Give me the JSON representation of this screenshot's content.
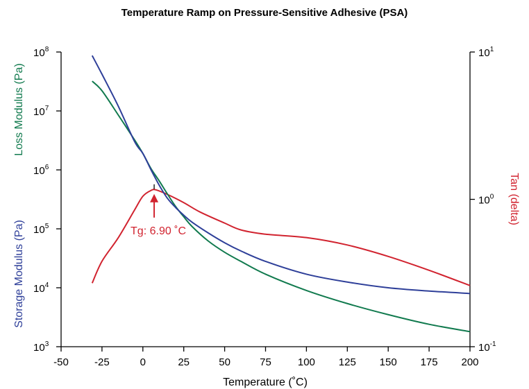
{
  "chart_data": {
    "type": "line",
    "title": "Temperature Ramp on Pressure-Sensitive Adhesive (PSA)",
    "xlabel": "Temperature (˚C)",
    "ylabel_left_top": "Loss Modulus  (Pa)",
    "ylabel_left_bottom": "Storage Modulus (Pa)",
    "ylabel_right": "Tan  (delta)",
    "xlim": [
      -50,
      200
    ],
    "x_ticks": [
      "-50",
      "-25",
      "0",
      "25",
      "50",
      "75",
      "100",
      "125",
      "150",
      "175",
      "200"
    ],
    "y_left_scale": "log",
    "y_left_range": [
      1000,
      100000000
    ],
    "y_left_ticks": [
      {
        "base": "10",
        "exp": "3"
      },
      {
        "base": "10",
        "exp": "4"
      },
      {
        "base": "10",
        "exp": "5"
      },
      {
        "base": "10",
        "exp": "6"
      },
      {
        "base": "10",
        "exp": "7"
      },
      {
        "base": "10",
        "exp": "8"
      }
    ],
    "y_right_scale": "log",
    "y_right_range": [
      0.1,
      10
    ],
    "y_right_ticks": [
      {
        "base": "10",
        "exp": "-1"
      },
      {
        "base": "10",
        "exp": "0"
      },
      {
        "base": "10",
        "exp": "1"
      }
    ],
    "colors": {
      "storage": "#2e3f99",
      "loss": "#117a4e",
      "tan": "#d1232f"
    },
    "series": [
      {
        "axis": "left",
        "color_key": "storage",
        "points": [
          [
            -31,
            87000000
          ],
          [
            -25,
            42000000
          ],
          [
            -15,
            12000000
          ],
          [
            -5,
            3000000
          ],
          [
            0,
            1900000
          ],
          [
            5,
            1000000
          ],
          [
            10,
            550000
          ],
          [
            15,
            330000
          ],
          [
            20,
            230000
          ],
          [
            25,
            170000
          ],
          [
            30,
            130000
          ],
          [
            40,
            85000
          ],
          [
            50,
            58000
          ],
          [
            60,
            42000
          ],
          [
            75,
            28000
          ],
          [
            100,
            17000
          ],
          [
            125,
            12500
          ],
          [
            150,
            10000
          ],
          [
            175,
            8800
          ],
          [
            200,
            8000
          ]
        ]
      },
      {
        "axis": "left",
        "color_key": "loss",
        "points": [
          [
            -31,
            32000000
          ],
          [
            -25,
            22000000
          ],
          [
            -15,
            8500000
          ],
          [
            -5,
            3200000
          ],
          [
            0,
            1900000
          ],
          [
            5,
            1050000
          ],
          [
            10,
            650000
          ],
          [
            15,
            390000
          ],
          [
            20,
            240000
          ],
          [
            25,
            160000
          ],
          [
            30,
            110000
          ],
          [
            40,
            62000
          ],
          [
            50,
            40000
          ],
          [
            60,
            28000
          ],
          [
            75,
            17000
          ],
          [
            100,
            9000
          ],
          [
            125,
            5400
          ],
          [
            150,
            3500
          ],
          [
            175,
            2400
          ],
          [
            200,
            1800
          ]
        ]
      },
      {
        "axis": "right",
        "color_key": "tan",
        "points": [
          [
            -31,
            0.27
          ],
          [
            -25,
            0.38
          ],
          [
            -15,
            0.55
          ],
          [
            -5,
            0.85
          ],
          [
            0,
            1.05
          ],
          [
            5,
            1.15
          ],
          [
            8,
            1.16
          ],
          [
            15,
            1.08
          ],
          [
            25,
            0.95
          ],
          [
            35,
            0.82
          ],
          [
            50,
            0.69
          ],
          [
            60,
            0.62
          ],
          [
            75,
            0.58
          ],
          [
            100,
            0.55
          ],
          [
            125,
            0.49
          ],
          [
            150,
            0.41
          ],
          [
            175,
            0.33
          ],
          [
            200,
            0.26
          ]
        ]
      }
    ],
    "annotations": [
      {
        "text": "Tg: 6.90 ˚C",
        "x": 6.9,
        "y_right": 1.16
      }
    ]
  }
}
